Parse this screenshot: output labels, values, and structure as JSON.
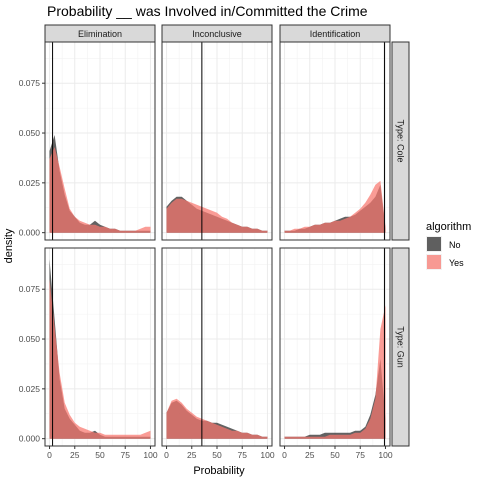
{
  "chart_data": {
    "type": "area",
    "title": "Probability __ was Involved in/Committed the Crime",
    "xlabel": "Probability",
    "ylabel": "density",
    "xlim": [
      0,
      100
    ],
    "ylim": [
      0,
      0.092
    ],
    "x_ticks": [
      "0",
      "25",
      "50",
      "75",
      "100"
    ],
    "y_ticks": [
      "0.000",
      "0.025",
      "0.050",
      "0.075"
    ],
    "y_tick_values": [
      0,
      0.025,
      0.05,
      0.075
    ],
    "x_tick_values": [
      0,
      25,
      50,
      75,
      100
    ],
    "grid": true,
    "legend": {
      "title": "algorithm",
      "position": "right",
      "entries": [
        {
          "label": "No",
          "color": "#262626"
        },
        {
          "label": "Yes",
          "color": "#F8766D"
        }
      ]
    },
    "columns": [
      "Elimination",
      "Inconclusive",
      "Identification"
    ],
    "rows": [
      "Type: Cole",
      "Type: Gun"
    ],
    "vlines": [
      3,
      35,
      99
    ],
    "x": [
      0,
      5,
      10,
      15,
      20,
      25,
      30,
      35,
      40,
      45,
      50,
      55,
      60,
      65,
      70,
      75,
      80,
      85,
      90,
      95,
      100
    ],
    "panels": [
      {
        "row": "Type: Cole",
        "column": "Elimination",
        "series": [
          {
            "name": "No",
            "values": [
              0.041,
              0.049,
              0.031,
              0.019,
              0.011,
              0.008,
              0.005,
              0.004,
              0.004,
              0.006,
              0.004,
              0.003,
              0.002,
              0.002,
              0.001,
              0.001,
              0.001,
              0.001,
              0.001,
              0.001,
              0.001
            ]
          },
          {
            "name": "Yes",
            "values": [
              0.037,
              0.043,
              0.033,
              0.022,
              0.012,
              0.008,
              0.006,
              0.005,
              0.004,
              0.004,
              0.003,
              0.003,
              0.002,
              0.002,
              0.001,
              0.001,
              0.001,
              0.001,
              0.002,
              0.003,
              0.003
            ]
          }
        ]
      },
      {
        "row": "Type: Cole",
        "column": "Inconclusive",
        "series": [
          {
            "name": "No",
            "values": [
              0.013,
              0.016,
              0.018,
              0.018,
              0.016,
              0.014,
              0.012,
              0.011,
              0.01,
              0.009,
              0.008,
              0.007,
              0.006,
              0.005,
              0.004,
              0.003,
              0.003,
              0.002,
              0.002,
              0.001,
              0.001
            ]
          },
          {
            "name": "Yes",
            "values": [
              0.012,
              0.015,
              0.017,
              0.017,
              0.016,
              0.015,
              0.014,
              0.013,
              0.012,
              0.011,
              0.01,
              0.008,
              0.007,
              0.005,
              0.004,
              0.003,
              0.003,
              0.002,
              0.002,
              0.001,
              0.001
            ]
          }
        ]
      },
      {
        "row": "Type: Cole",
        "column": "Identification",
        "series": [
          {
            "name": "No",
            "values": [
              0.001,
              0.001,
              0.001,
              0.002,
              0.002,
              0.003,
              0.004,
              0.004,
              0.005,
              0.005,
              0.006,
              0.007,
              0.008,
              0.008,
              0.009,
              0.011,
              0.013,
              0.015,
              0.018,
              0.024,
              0.002
            ]
          },
          {
            "name": "Yes",
            "values": [
              0.001,
              0.001,
              0.002,
              0.002,
              0.003,
              0.003,
              0.004,
              0.004,
              0.005,
              0.005,
              0.006,
              0.006,
              0.007,
              0.008,
              0.01,
              0.012,
              0.015,
              0.019,
              0.024,
              0.026,
              0.003
            ]
          }
        ]
      },
      {
        "row": "Type: Gun",
        "column": "Elimination",
        "series": [
          {
            "name": "No",
            "values": [
              0.09,
              0.06,
              0.03,
              0.015,
              0.01,
              0.007,
              0.004,
              0.003,
              0.003,
              0.004,
              0.002,
              0.001,
              0.001,
              0.001,
              0.001,
              0.001,
              0.001,
              0.001,
              0.001,
              0.001,
              0.001
            ]
          },
          {
            "name": "Yes",
            "values": [
              0.08,
              0.056,
              0.033,
              0.018,
              0.012,
              0.008,
              0.006,
              0.005,
              0.004,
              0.003,
              0.003,
              0.002,
              0.002,
              0.002,
              0.002,
              0.002,
              0.002,
              0.002,
              0.002,
              0.003,
              0.004
            ]
          }
        ]
      },
      {
        "row": "Type: Gun",
        "column": "Inconclusive",
        "series": [
          {
            "name": "No",
            "values": [
              0.013,
              0.018,
              0.019,
              0.017,
              0.014,
              0.012,
              0.01,
              0.009,
              0.009,
              0.008,
              0.008,
              0.007,
              0.006,
              0.005,
              0.004,
              0.003,
              0.003,
              0.002,
              0.002,
              0.001,
              0.001
            ]
          },
          {
            "name": "Yes",
            "values": [
              0.013,
              0.019,
              0.02,
              0.018,
              0.015,
              0.013,
              0.011,
              0.01,
              0.009,
              0.008,
              0.007,
              0.006,
              0.005,
              0.004,
              0.004,
              0.003,
              0.003,
              0.002,
              0.002,
              0.001,
              0.001
            ]
          }
        ]
      },
      {
        "row": "Type: Gun",
        "column": "Identification",
        "series": [
          {
            "name": "No",
            "values": [
              0.001,
              0.001,
              0.001,
              0.001,
              0.001,
              0.002,
              0.002,
              0.002,
              0.003,
              0.003,
              0.003,
              0.003,
              0.003,
              0.003,
              0.004,
              0.004,
              0.006,
              0.012,
              0.022,
              0.04,
              0.01
            ]
          },
          {
            "name": "Yes",
            "values": [
              0.001,
              0.001,
              0.001,
              0.001,
              0.001,
              0.001,
              0.001,
              0.001,
              0.001,
              0.002,
              0.002,
              0.002,
              0.002,
              0.002,
              0.003,
              0.003,
              0.005,
              0.01,
              0.02,
              0.055,
              0.067
            ]
          }
        ]
      }
    ]
  }
}
